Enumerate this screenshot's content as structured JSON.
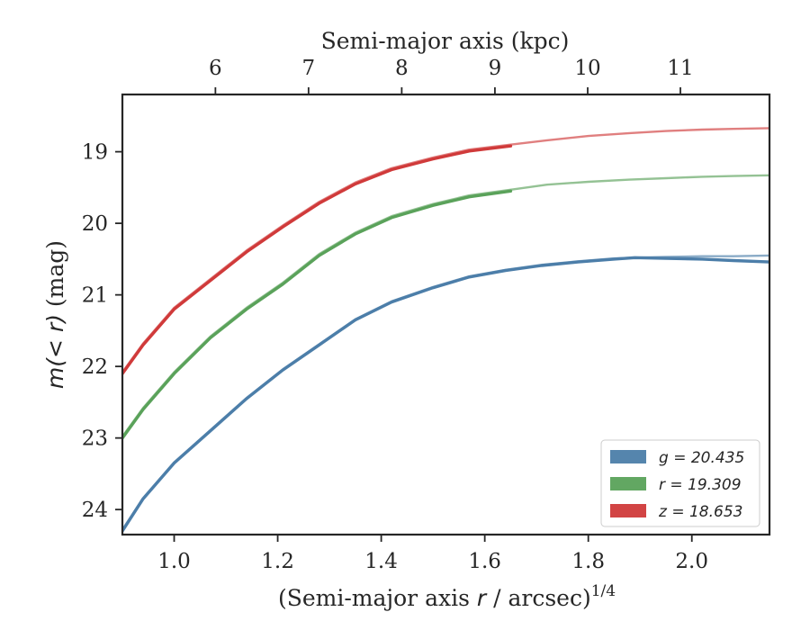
{
  "chart_data": {
    "type": "line",
    "xlabel": "(Semi-major axis r / arcsec)",
    "xlabel_prefix": "(Semi-major axis ",
    "xlabel_var": "r",
    "xlabel_suffix": " / arcsec)",
    "xlabel_sup": "1/4",
    "ylabel": "m(< r) (mag)",
    "ylabel_math": "m(< r)",
    "ylabel_units": " (mag)",
    "top_xlabel": "Semi-major axis (kpc)",
    "xlim": [
      0.9,
      2.15
    ],
    "ylim": [
      24.35,
      18.2
    ],
    "y_inverted": true,
    "x_ticks": [
      1.0,
      1.2,
      1.4,
      1.6,
      1.8,
      2.0
    ],
    "x_tick_labels": [
      "1.0",
      "1.2",
      "1.4",
      "1.6",
      "1.8",
      "2.0"
    ],
    "y_ticks": [
      19,
      20,
      21,
      22,
      23,
      24
    ],
    "y_tick_labels": [
      "19",
      "20",
      "21",
      "22",
      "23",
      "24"
    ],
    "top_x_ticks_kpc": [
      6,
      7,
      8,
      9,
      10,
      11
    ],
    "top_x_tick_labels": [
      "6",
      "7",
      "8",
      "9",
      "10",
      "11"
    ],
    "top_x_tick_positions": [
      1.0797,
      1.2596,
      1.4396,
      1.6196,
      1.7988,
      1.9779
    ],
    "grid": false,
    "legend_location": "lower-right",
    "series": [
      {
        "name": "g = 20.435",
        "band": "g",
        "value": "20.435",
        "color": "#4c7ea9",
        "x": [
          0.9,
          0.94,
          1.0,
          1.07,
          1.14,
          1.21,
          1.28,
          1.35,
          1.42,
          1.5,
          1.57,
          1.64,
          1.71,
          1.78,
          1.85,
          1.89,
          1.95,
          2.02,
          2.08,
          2.15
        ],
        "y": [
          24.3,
          23.85,
          23.35,
          22.9,
          22.45,
          22.05,
          21.7,
          21.35,
          21.1,
          20.9,
          20.75,
          20.66,
          20.59,
          20.54,
          20.5,
          20.48,
          20.49,
          20.5,
          20.52,
          20.54
        ],
        "fit_x": [
          0.9,
          0.94,
          1.0,
          1.07,
          1.14,
          1.21,
          1.28,
          1.35,
          1.42,
          1.5,
          1.57,
          1.64,
          1.71,
          1.78,
          1.85,
          1.89,
          1.95,
          2.02,
          2.08,
          2.15
        ],
        "fit_y": [
          24.28,
          23.84,
          23.34,
          22.89,
          22.44,
          22.04,
          21.69,
          21.34,
          21.09,
          20.89,
          20.74,
          20.65,
          20.58,
          20.53,
          20.49,
          20.48,
          20.47,
          20.46,
          20.46,
          20.45
        ]
      },
      {
        "name": "r = 19.309",
        "band": "r",
        "value": "19.309",
        "color": "#5aa25a",
        "x": [
          0.9,
          0.94,
          1.0,
          1.07,
          1.14,
          1.21,
          1.28,
          1.35,
          1.42,
          1.5,
          1.57,
          1.65
        ],
        "y": [
          23.0,
          22.6,
          22.1,
          21.6,
          21.2,
          20.85,
          20.45,
          20.15,
          19.92,
          19.75,
          19.63,
          19.55
        ],
        "fit_x": [
          0.9,
          0.94,
          1.0,
          1.07,
          1.14,
          1.21,
          1.28,
          1.35,
          1.42,
          1.5,
          1.57,
          1.65,
          1.72,
          1.8,
          1.88,
          1.95,
          2.02,
          2.08,
          2.15
        ],
        "fit_y": [
          22.98,
          22.58,
          22.08,
          21.58,
          21.18,
          20.83,
          20.43,
          20.13,
          19.9,
          19.73,
          19.61,
          19.53,
          19.46,
          19.42,
          19.39,
          19.37,
          19.35,
          19.34,
          19.33
        ]
      },
      {
        "name": "z = 18.653",
        "band": "z",
        "value": "18.653",
        "color": "#d03a3a",
        "x": [
          0.9,
          0.94,
          1.0,
          1.07,
          1.14,
          1.21,
          1.28,
          1.35,
          1.42,
          1.5,
          1.57,
          1.65
        ],
        "y": [
          22.1,
          21.7,
          21.2,
          20.8,
          20.4,
          20.05,
          19.72,
          19.45,
          19.25,
          19.1,
          18.99,
          18.92
        ],
        "fit_x": [
          0.9,
          0.94,
          1.0,
          1.07,
          1.14,
          1.21,
          1.28,
          1.35,
          1.42,
          1.5,
          1.57,
          1.65,
          1.72,
          1.8,
          1.88,
          1.95,
          2.02,
          2.08,
          2.15
        ],
        "fit_y": [
          22.08,
          21.68,
          21.18,
          20.78,
          20.38,
          20.03,
          19.7,
          19.43,
          19.23,
          19.08,
          18.97,
          18.9,
          18.84,
          18.78,
          18.74,
          18.71,
          18.69,
          18.68,
          18.67
        ]
      }
    ]
  }
}
